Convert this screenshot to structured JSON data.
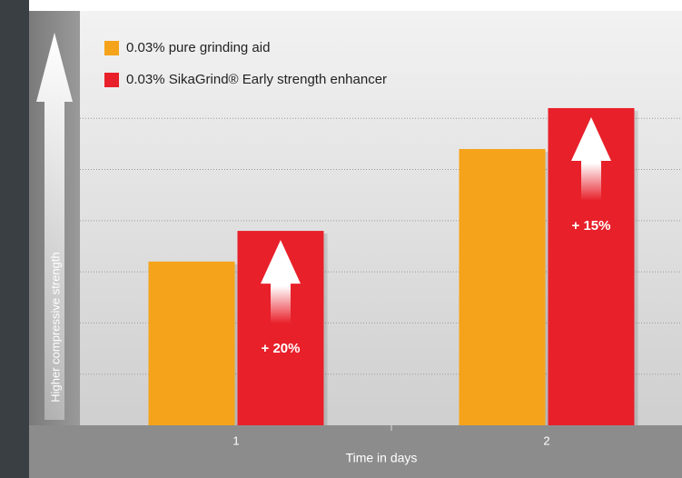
{
  "chart_data": {
    "type": "bar",
    "y_label": "Higher compressive strength",
    "x_label": "Time in days",
    "categories": [
      "1",
      "2"
    ],
    "series": [
      {
        "name": "0.03% pure grinding aid",
        "color": "#f5a31a",
        "values": [
          3.2,
          5.4
        ]
      },
      {
        "name": "0.03% SikaGrind® Early strength enhancer",
        "color": "#e8202a",
        "values": [
          3.8,
          6.2
        ]
      }
    ],
    "annotations": [
      "+ 20%",
      "+ 15%"
    ],
    "ylim": [
      0,
      8.1
    ],
    "yticks": [
      1,
      2,
      3,
      4,
      5,
      6
    ],
    "grid": true
  }
}
